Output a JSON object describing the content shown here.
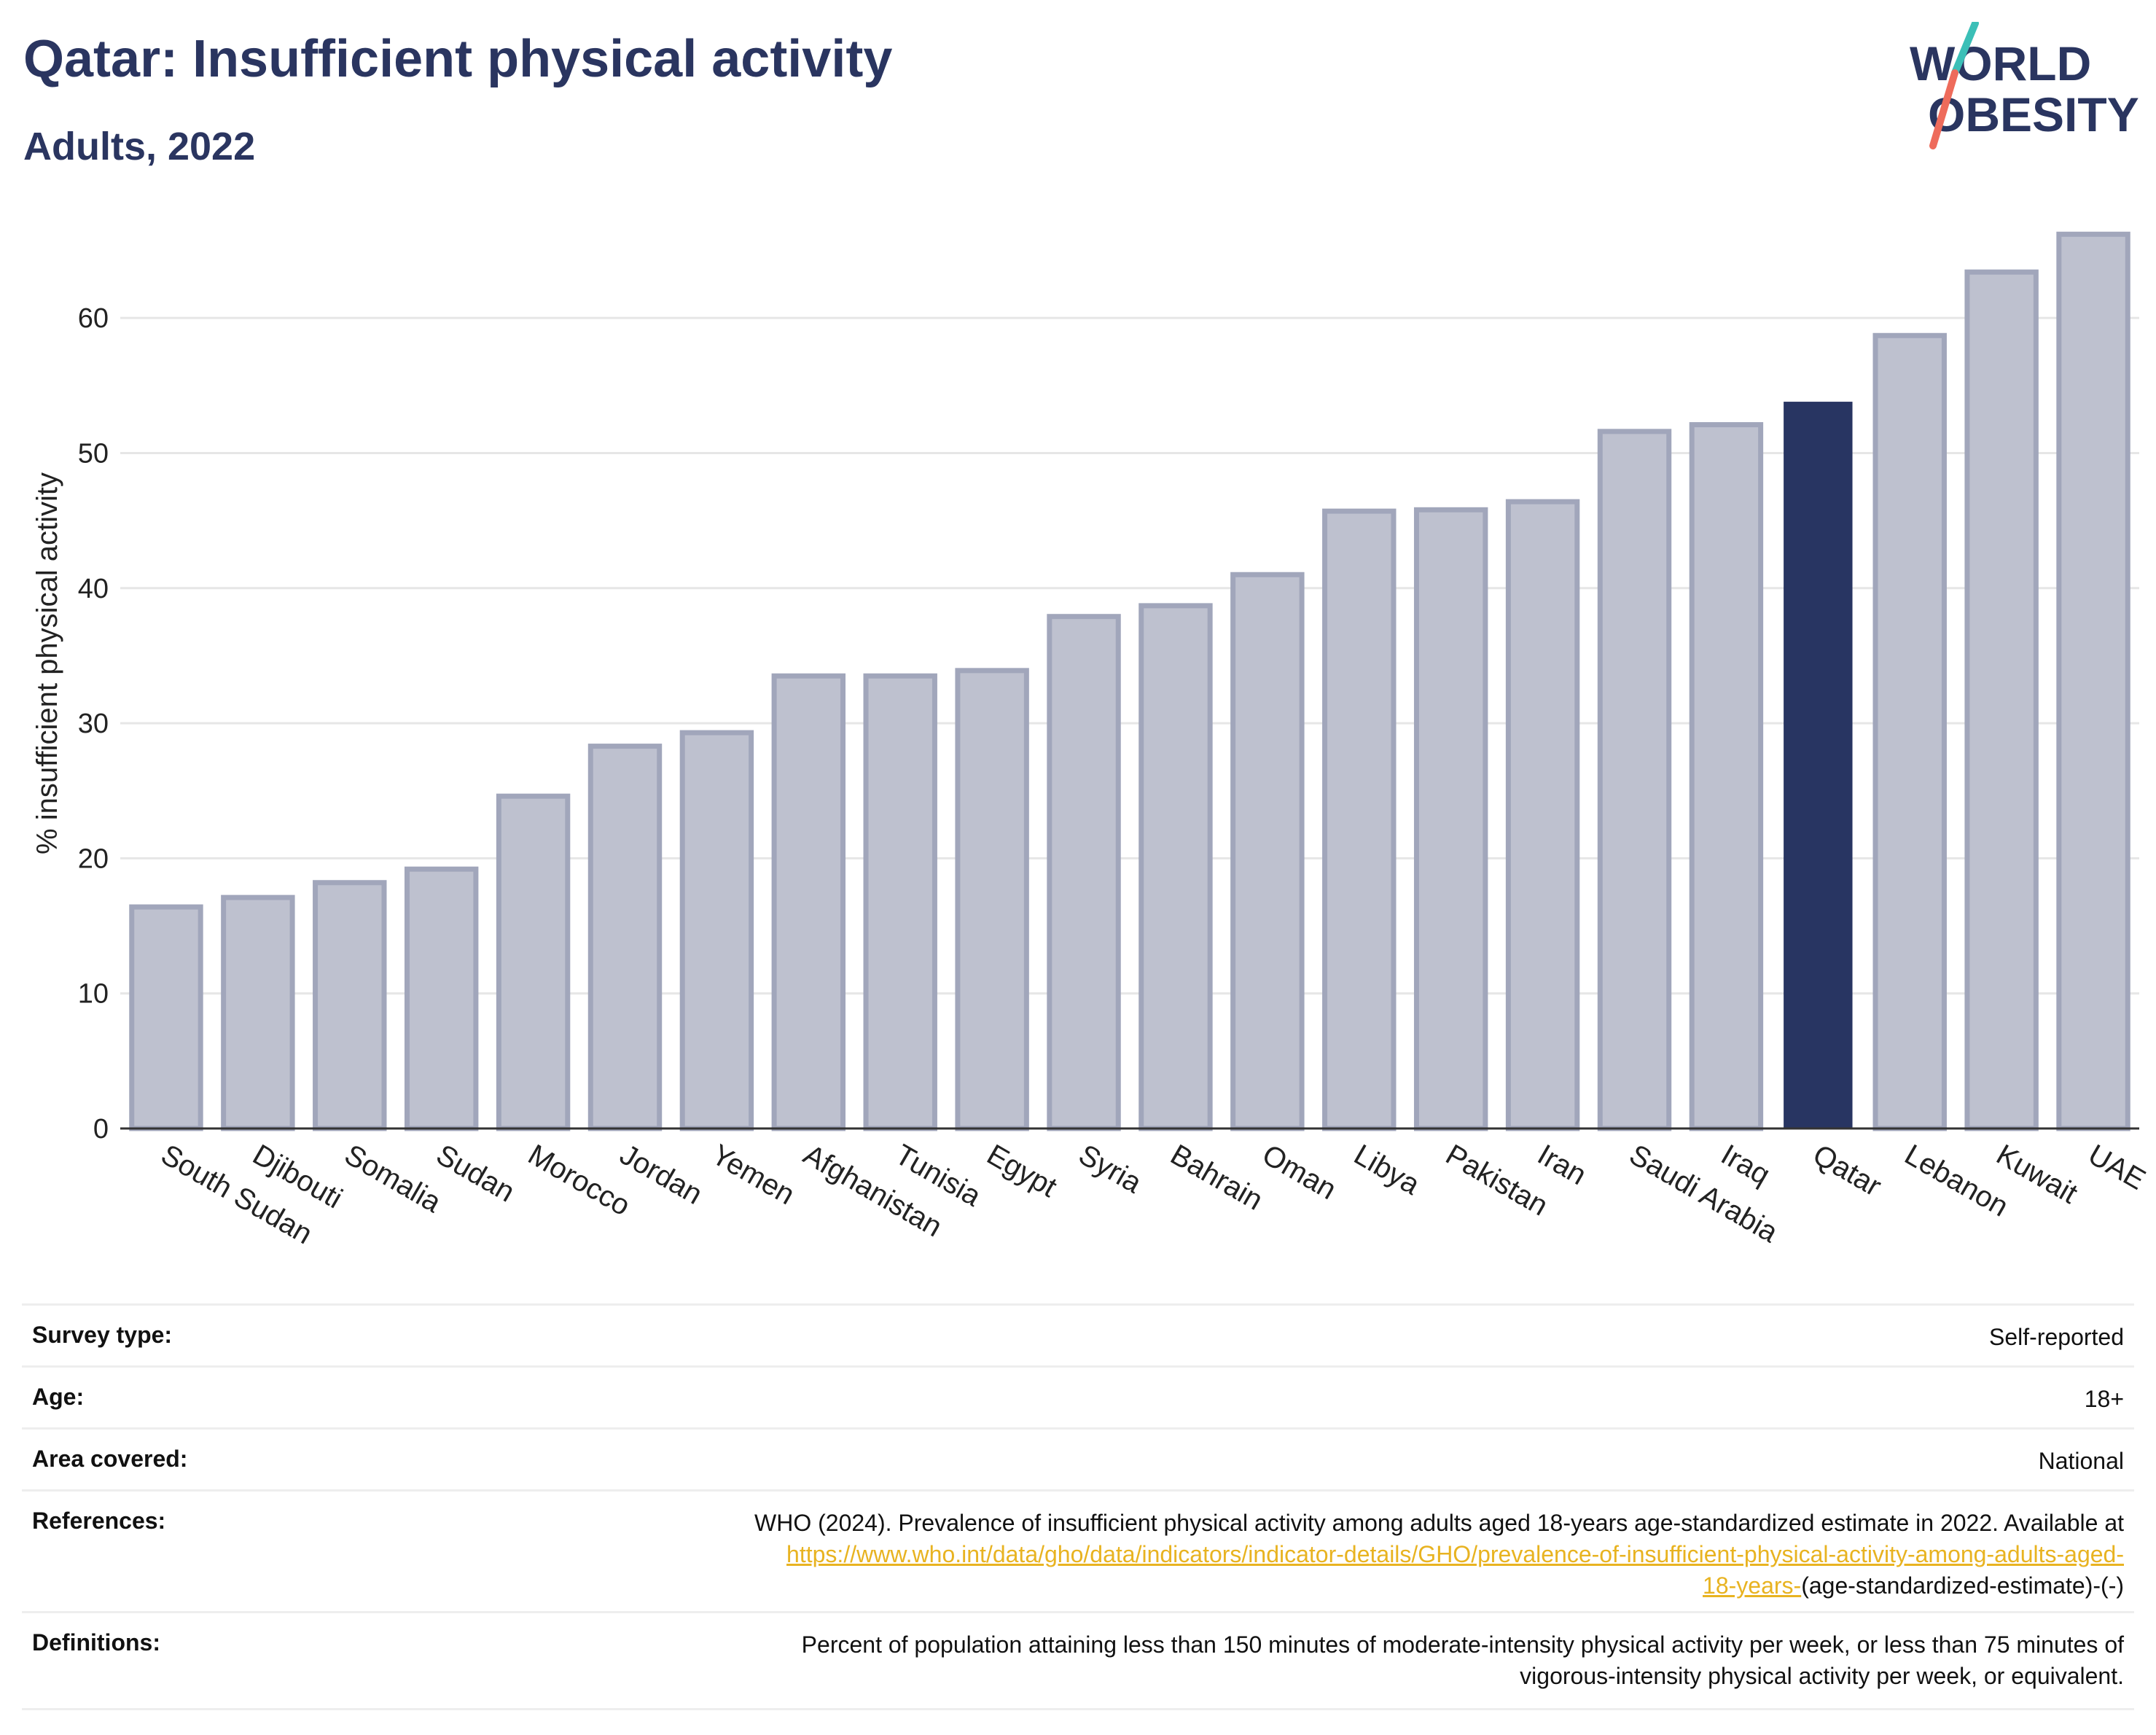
{
  "header": {
    "title": "Qatar: Insufficient physical activity",
    "subtitle": "Adults, 2022"
  },
  "logo": {
    "line1": "WORLD",
    "line2": "OBESITY",
    "icon": "world-obesity-slash-logo",
    "text_color": "#2a3560",
    "accent_teal": "#3bbfb7",
    "accent_coral": "#ee6b5b"
  },
  "chart_data": {
    "type": "bar",
    "ylabel": "% insufficient physical activity",
    "ylim": [
      0,
      66
    ],
    "yticks": [
      0,
      10,
      20,
      30,
      40,
      50,
      60
    ],
    "grid": true,
    "categories": [
      "South Sudan",
      "Djibouti",
      "Somalia",
      "Sudan",
      "Morocco",
      "Jordan",
      "Yemen",
      "Afghanistan",
      "Tunisia",
      "Egypt",
      "Syria",
      "Bahrain",
      "Oman",
      "Libya",
      "Pakistan",
      "Iran",
      "Saudi Arabia",
      "Iraq",
      "Qatar",
      "Lebanon",
      "Kuwait",
      "UAE"
    ],
    "values": [
      16.4,
      17.1,
      18.2,
      19.2,
      24.6,
      28.3,
      29.3,
      33.5,
      33.5,
      33.9,
      37.9,
      38.7,
      41.0,
      45.7,
      45.8,
      46.4,
      51.6,
      52.1,
      53.8,
      58.7,
      63.4,
      66.2
    ],
    "highlight": "Qatar",
    "colors": {
      "bar_fill": "#bec1cf",
      "bar_stroke": "#a1a6bb",
      "highlight_fill": "#283562",
      "grid": "#e6e6e6",
      "axis": "#333333"
    }
  },
  "info": {
    "survey_type_label": "Survey type:",
    "survey_type_value": "Self-reported",
    "age_label": "Age:",
    "age_value": "18+",
    "area_label": "Area covered:",
    "area_value": "National",
    "references_label": "References:",
    "references_text": "WHO (2024). Prevalence of insufficient physical activity among adults aged 18-years age-standardized estimate in 2022. Available at",
    "references_link_1": "https://www.who.int/data/gho/data/indicators/indicator-details/GHO/prevalence-of-insufficient-physical-activity-among-adults-aged-",
    "references_link_2": "18-years-",
    "references_suffix": "(age-standardized-estimate)-(-)",
    "definitions_label": "Definitions:",
    "definitions_line1": "Percent of population attaining less than 150 minutes of moderate-intensity physical activity per week, or less than 75 minutes of",
    "definitions_line2": "vigorous-intensity physical activity per week, or equivalent."
  }
}
